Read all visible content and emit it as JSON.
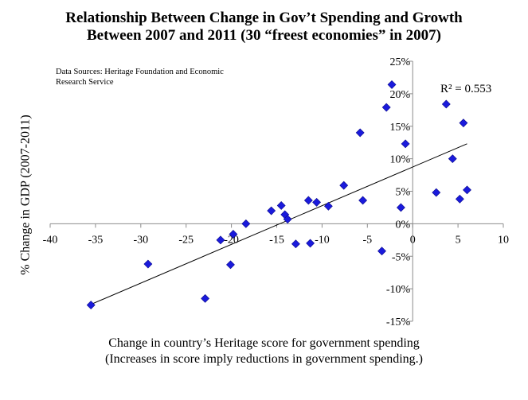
{
  "chart_data": {
    "type": "scatter",
    "title_lines": [
      "Relationship Between Change in Gov’t Spending and Growth",
      "Between 2007 and 2011 (30 “freest economies” in 2007)"
    ],
    "source_lines": [
      "Data Sources: Heritage Foundation and Economic",
      "Research Service"
    ],
    "xlabel_lines": [
      "Change in country’s Heritage score for government spending",
      "(Increases in score imply reductions in government spending.)"
    ],
    "ylabel": "% Change in GDP (2007-2011)",
    "xlim": [
      -40,
      10
    ],
    "ylim": [
      -15,
      25
    ],
    "x_ticks": [
      -40,
      -35,
      -30,
      -25,
      -20,
      -15,
      -10,
      -5,
      0,
      5,
      10
    ],
    "x_tick_labels": [
      "-40",
      "-35",
      "-30",
      "-25",
      "-20",
      "-15",
      "-10",
      "-5",
      "0",
      "5",
      "10"
    ],
    "y_ticks": [
      -15,
      -10,
      -5,
      0,
      5,
      10,
      15,
      20,
      25
    ],
    "y_tick_labels": [
      "-15%",
      "-10%",
      "-5%",
      "0%",
      "5%",
      "10%",
      "15%",
      "20%",
      "25%"
    ],
    "grid": false,
    "r_squared_label": "R² = 0.553",
    "trendline": {
      "x": [
        -35.5,
        6
      ],
      "y": [
        -12.4,
        12.3
      ]
    },
    "marker_color": "#1a1adc",
    "points": [
      {
        "x": -35.5,
        "y": -12.5
      },
      {
        "x": -29.2,
        "y": -6.2
      },
      {
        "x": -22.9,
        "y": -11.5
      },
      {
        "x": -21.2,
        "y": -2.5
      },
      {
        "x": -20.1,
        "y": -6.3
      },
      {
        "x": -19.8,
        "y": -1.6
      },
      {
        "x": -18.4,
        "y": 0.0
      },
      {
        "x": -15.6,
        "y": 2.0
      },
      {
        "x": -14.5,
        "y": 2.8
      },
      {
        "x": -14.1,
        "y": 1.4
      },
      {
        "x": -13.8,
        "y": 0.7
      },
      {
        "x": -12.9,
        "y": -3.1
      },
      {
        "x": -11.5,
        "y": 3.6
      },
      {
        "x": -11.3,
        "y": -3.0
      },
      {
        "x": -10.6,
        "y": 3.3
      },
      {
        "x": -9.3,
        "y": 2.7
      },
      {
        "x": -7.6,
        "y": 5.9
      },
      {
        "x": -5.8,
        "y": 14.0
      },
      {
        "x": -5.5,
        "y": 3.6
      },
      {
        "x": -3.4,
        "y": -4.2
      },
      {
        "x": -2.9,
        "y": 17.9
      },
      {
        "x": -2.3,
        "y": 21.4
      },
      {
        "x": -1.3,
        "y": 2.5
      },
      {
        "x": -0.8,
        "y": 12.3
      },
      {
        "x": 2.6,
        "y": 4.8
      },
      {
        "x": 3.7,
        "y": 18.4
      },
      {
        "x": 4.4,
        "y": 10.0
      },
      {
        "x": 5.2,
        "y": 3.8
      },
      {
        "x": 5.6,
        "y": 15.5
      },
      {
        "x": 6.0,
        "y": 5.2
      }
    ]
  }
}
